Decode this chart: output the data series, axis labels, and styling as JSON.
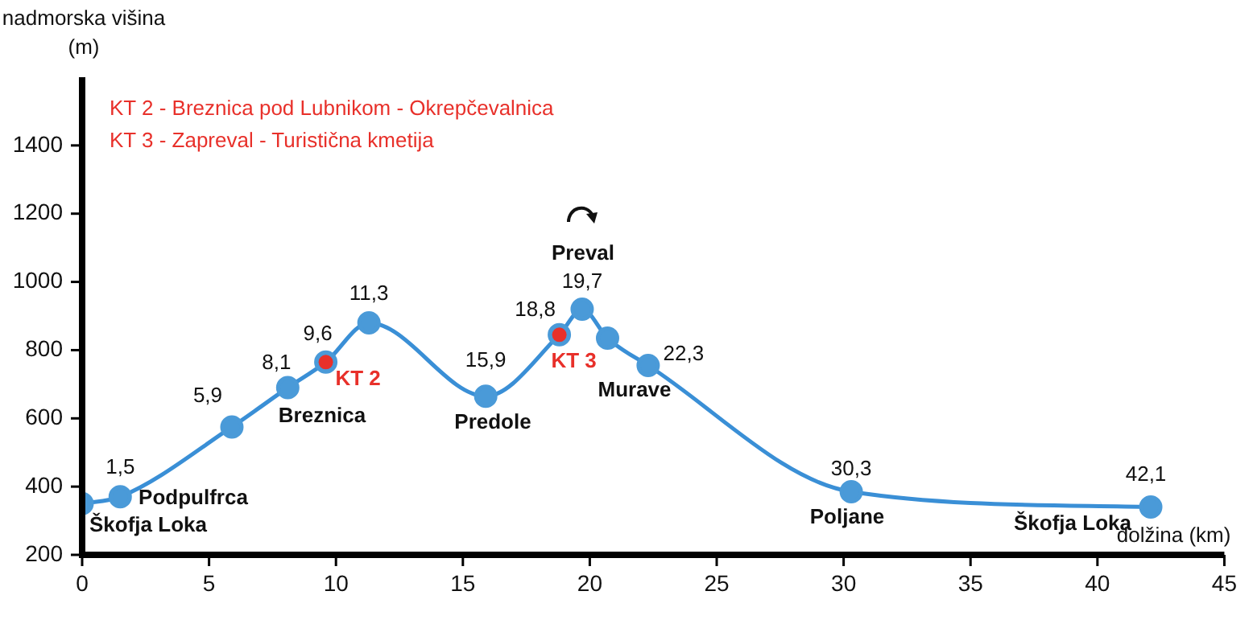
{
  "chart_data": {
    "type": "line",
    "xlabel": "dolžina (km)",
    "ylabel": "nadmorska višina (m)",
    "xlim": [
      0,
      45
    ],
    "xticks": [
      0,
      5,
      10,
      15,
      20,
      25,
      30,
      35,
      40,
      45
    ],
    "ylim": [
      200,
      1600
    ],
    "yticks": [
      200,
      400,
      600,
      800,
      1000,
      1200,
      1400
    ],
    "grid": false,
    "legend": false,
    "marker": "circle",
    "line_style": "solid",
    "series": [
      {
        "color": "#3a8fd6",
        "x": [
          0,
          1.5,
          5.9,
          8.1,
          9.6,
          11.3,
          15.9,
          18.8,
          19.7,
          20.7,
          22.3,
          30.3,
          42.1
        ],
        "values": [
          350,
          370,
          575,
          690,
          765,
          880,
          665,
          845,
          920,
          835,
          755,
          385,
          340
        ]
      },
      {
        "type": "scatter",
        "color": "#e8302a",
        "x": [
          9.6,
          18.8
        ],
        "values": [
          765,
          845
        ],
        "value_labels": [
          "KT 2",
          "KT 3"
        ]
      }
    ],
    "annotations": [
      "KT 2 - Breznica pod Lubnikom - Okrepčevalnica",
      "KT 3 - Zapreval - Turistična kmetija",
      "Škofja Loka",
      "Podpulfrca",
      "Breznica",
      "Predole",
      "Preval",
      "Murave",
      "Poljane",
      "Škofja Loka",
      {
        "text": "1,5",
        "x": 1.5,
        "y": 370
      },
      {
        "text": "5,9",
        "x": 5.9,
        "y": 575
      },
      {
        "text": "8,1",
        "x": 8.1,
        "y": 690
      },
      {
        "text": "9,6",
        "x": 9.6,
        "y": 765
      },
      {
        "text": "11,3",
        "x": 11.3,
        "y": 880
      },
      {
        "text": "15,9",
        "x": 15.9,
        "y": 665
      },
      {
        "text": "18,8",
        "x": 18.8,
        "y": 845
      },
      {
        "text": "19,7",
        "x": 19.7,
        "y": 920
      },
      {
        "text": "22,3",
        "x": 22.3,
        "y": 755
      },
      {
        "text": "30,3",
        "x": 30.3,
        "y": 385
      },
      {
        "text": "42,1",
        "x": 42.1,
        "y": 340
      }
    ]
  }
}
